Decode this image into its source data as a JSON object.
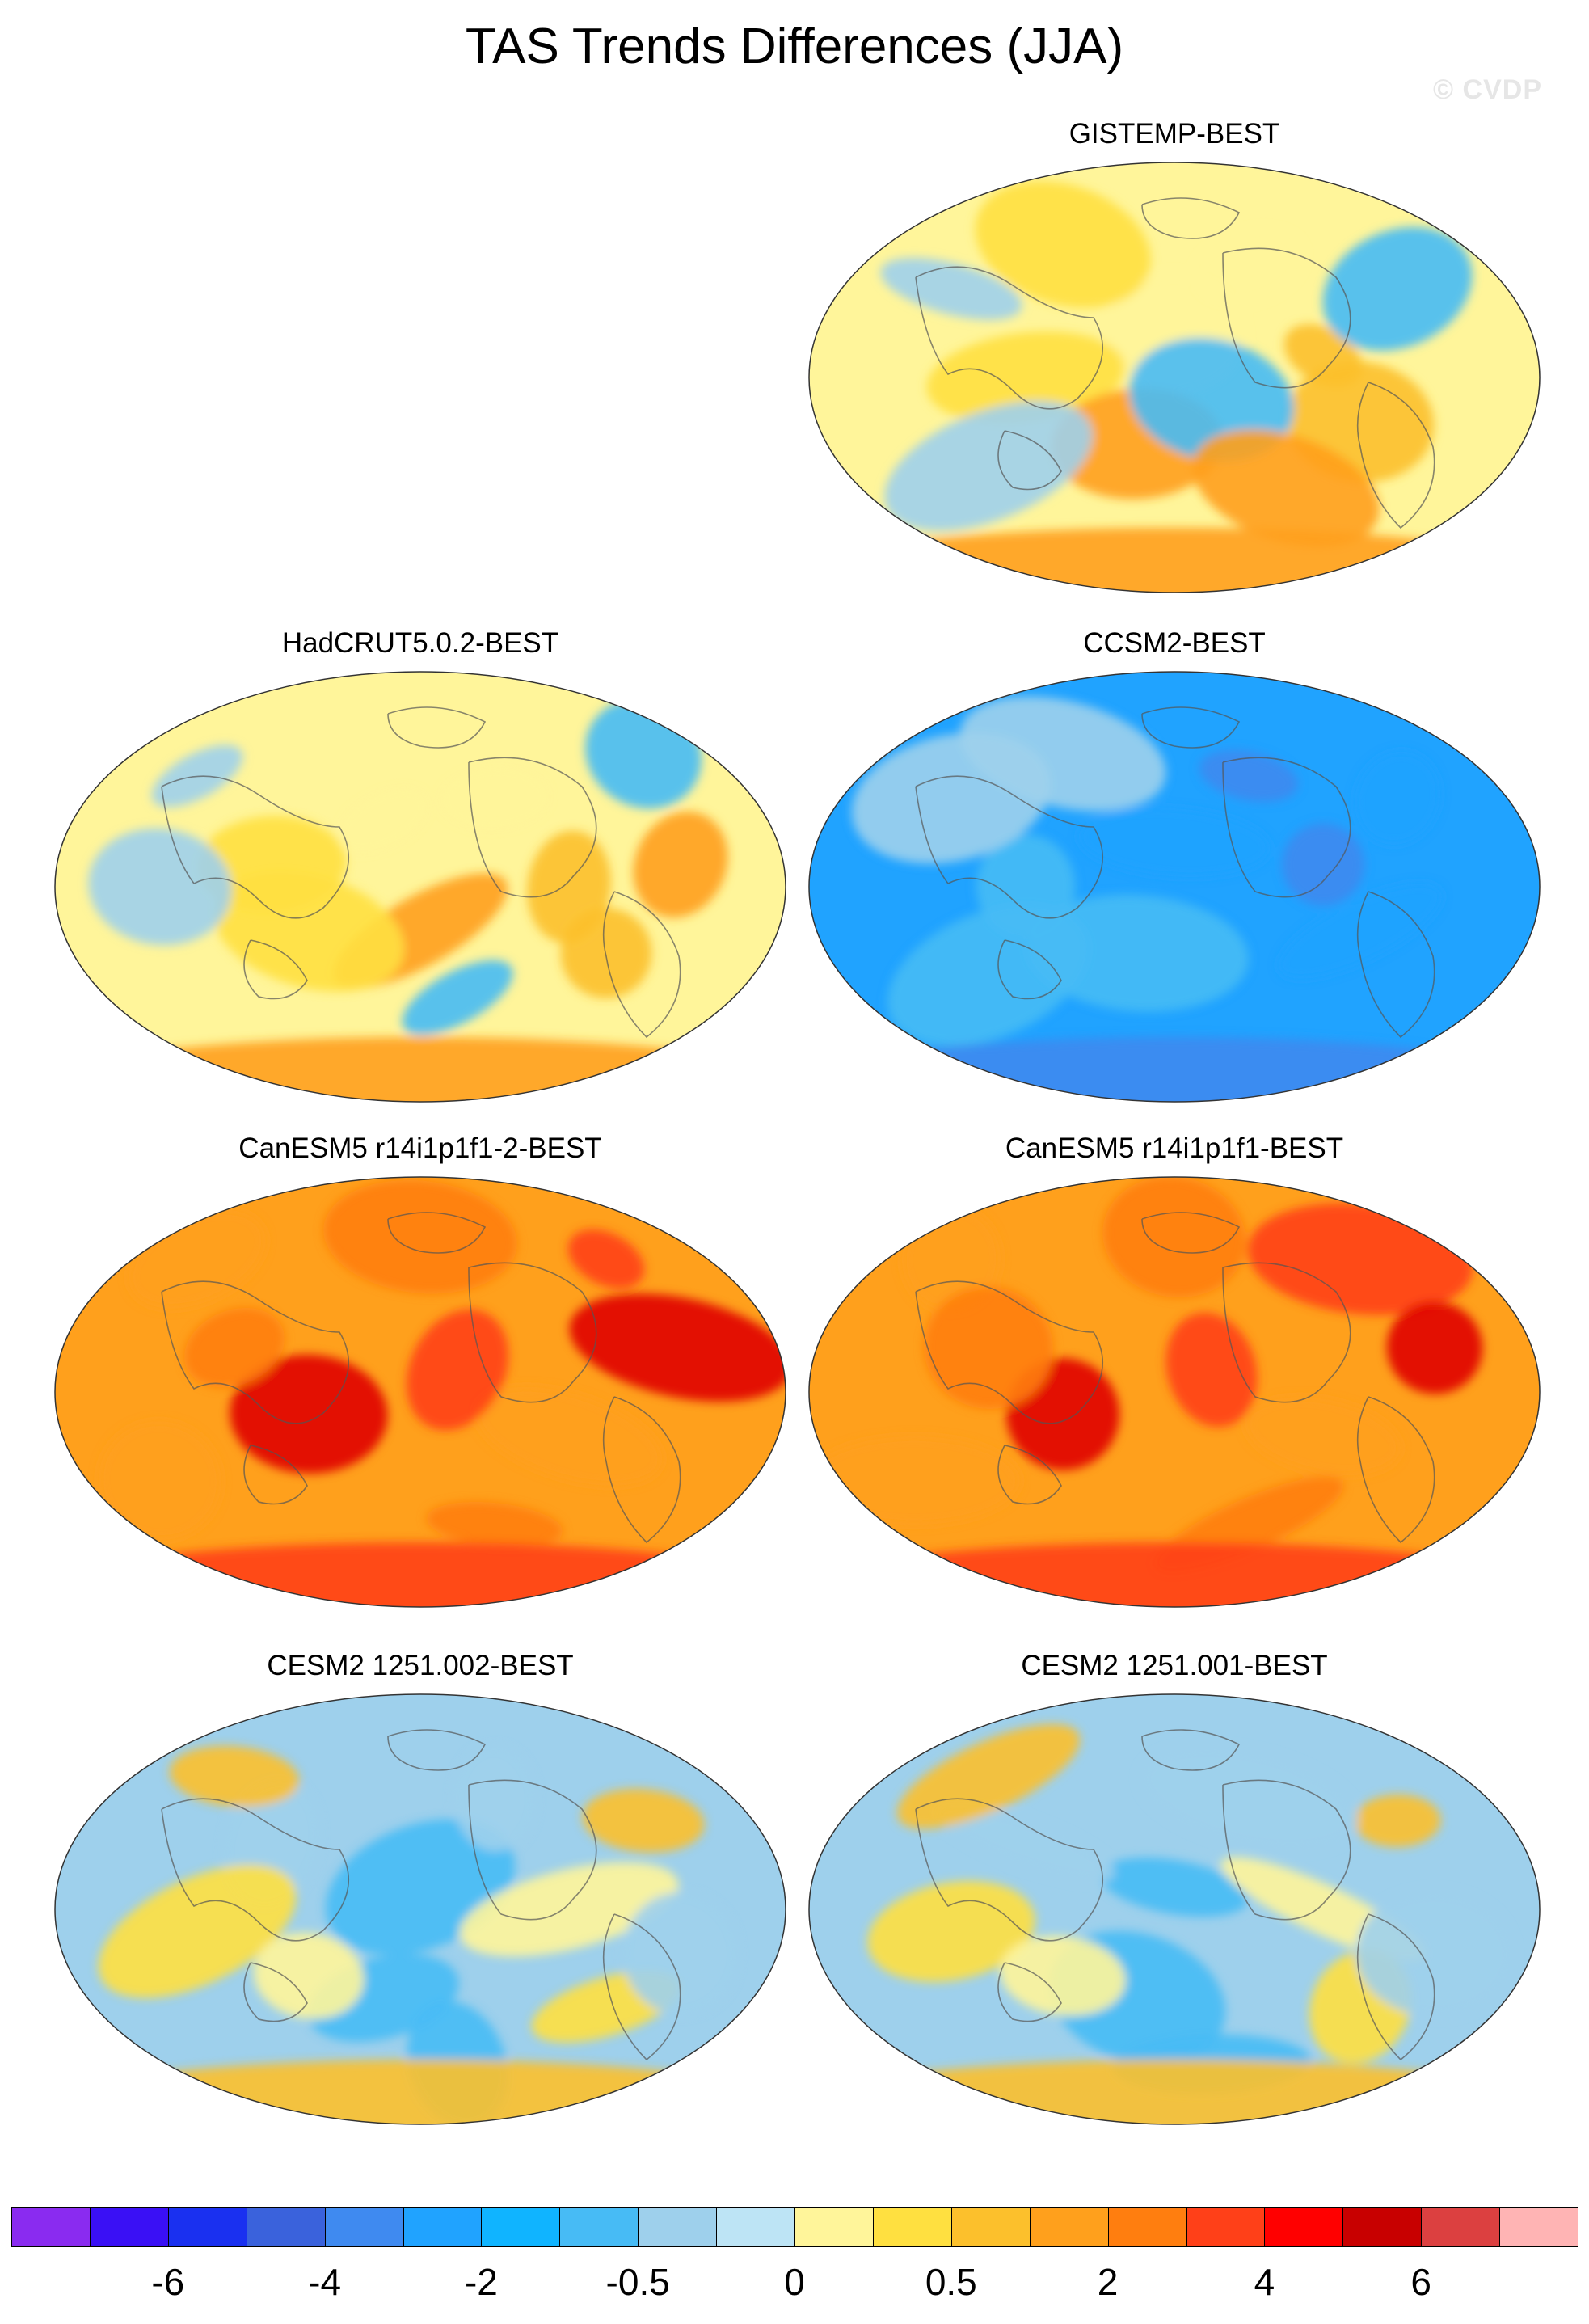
{
  "title": "TAS Trends Differences (JJA)",
  "watermark": "© CVDP",
  "panels": [
    {
      "id": "p1",
      "title": "GISTEMP-BEST",
      "field": "mixed",
      "colors": [
        "#fff59a",
        "#ffe040",
        "#fcc02c",
        "#9ed0ec",
        "#47bbf5",
        "#ffa01c"
      ]
    },
    {
      "id": "p2",
      "title": "HadCRUT5.0.2-BEST",
      "field": "mixed-warm",
      "colors": [
        "#fff59a",
        "#ffe040",
        "#fcc02c",
        "#9ed0ec",
        "#47bbf5",
        "#ffa01c"
      ]
    },
    {
      "id": "p3",
      "title": "CCSM2-BEST",
      "field": "cool",
      "colors": [
        "#20a3ff",
        "#47bbf5",
        "#3f8af0",
        "#9ed0ec"
      ]
    },
    {
      "id": "p4",
      "title": "CanESM5 r14i1p1f1-2-BEST",
      "field": "warm",
      "colors": [
        "#ffa01c",
        "#ff7e0f",
        "#ff4018",
        "#e00000"
      ]
    },
    {
      "id": "p5",
      "title": "CanESM5 r14i1p1f1-BEST",
      "field": "warm",
      "colors": [
        "#ffa01c",
        "#ff7e0f",
        "#ff4018",
        "#e00000"
      ]
    },
    {
      "id": "p6",
      "title": "CESM2 1251.002-BEST",
      "field": "mixed-cool",
      "colors": [
        "#47bbf5",
        "#9ed0ec",
        "#fff59a",
        "#ffe040",
        "#fcc02c"
      ]
    },
    {
      "id": "p7",
      "title": "CESM2 1251.001-BEST",
      "field": "mixed-cool",
      "colors": [
        "#47bbf5",
        "#9ed0ec",
        "#fff59a",
        "#ffe040",
        "#fcc02c"
      ]
    }
  ],
  "colorbar": {
    "colors": [
      "#8a2bf0",
      "#3a10f5",
      "#1a30f0",
      "#3a62dc",
      "#3f8af0",
      "#20a3ff",
      "#10b4ff",
      "#47bbf5",
      "#9ed0ec",
      "#bde4f5",
      "#fff59a",
      "#ffe040",
      "#fcc02c",
      "#ffa01c",
      "#ff7e0f",
      "#ff4018",
      "#ff0000",
      "#c80000",
      "#dc4040",
      "#ffb4b4"
    ],
    "labels": [
      "-6",
      "-4",
      "-2",
      "-0.5",
      "0",
      "0.5",
      "2",
      "4",
      "6"
    ]
  }
}
